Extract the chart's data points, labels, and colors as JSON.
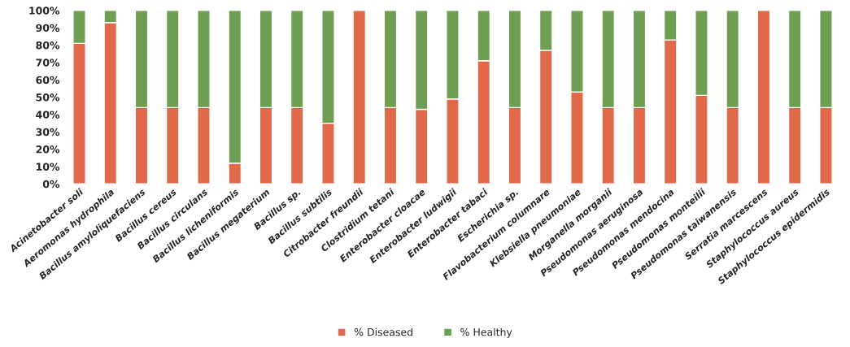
{
  "chart_data": {
    "type": "bar",
    "stacked": true,
    "categories": [
      "Acinetobacter soli",
      "Aeromonas hydrophila",
      "Bacillus amyloliquefaciens",
      "Bacillus cereus",
      "Bacillus circulans",
      "Bacillus licheniformis",
      "Bacillus megaterium",
      "Bacillus sp.",
      "Bacillus subtilis",
      "Citrobacter freundii",
      "Clostridium tetani",
      "Enterobacter cloacae",
      "Enterobacter ludwigii",
      "Enterobacter tabaci",
      "Escherichia sp.",
      "Flavobacterium columnare",
      "Klebsiella pneumoniae",
      "Morganella morganii",
      "Pseudomonas aeruginosa",
      "Pseudomonas mendocina",
      "Pseudomonas monteilii",
      "Pseudomonas taiwanensis",
      "Serratia marcescens",
      "Staphylococcus aureus",
      "Staphylococcus epidermidis"
    ],
    "series": [
      {
        "name": "% Diseased",
        "color": "#e0694a",
        "values": [
          81,
          93,
          44,
          44,
          44,
          12,
          44,
          44,
          35,
          100,
          44,
          43,
          49,
          71,
          44,
          77,
          53,
          44,
          44,
          83,
          51,
          44,
          100,
          44,
          44
        ]
      },
      {
        "name": "% Healthy",
        "color": "#6e9e52",
        "values": [
          19,
          7,
          56,
          56,
          56,
          88,
          56,
          56,
          65,
          null,
          56,
          57,
          51,
          29,
          56,
          23,
          47,
          56,
          56,
          17,
          49,
          56,
          null,
          56,
          56
        ]
      }
    ],
    "ylim": [
      0,
      100
    ],
    "yticks": [
      {
        "value": 0,
        "label": "0%"
      },
      {
        "value": 10,
        "label": "10%"
      },
      {
        "value": 20,
        "label": "20%"
      },
      {
        "value": 30,
        "label": "30%"
      },
      {
        "value": 40,
        "label": "40%"
      },
      {
        "value": 50,
        "label": "50%"
      },
      {
        "value": 60,
        "label": "60%"
      },
      {
        "value": 70,
        "label": "70%"
      },
      {
        "value": 80,
        "label": "80%"
      },
      {
        "value": 90,
        "label": "90%"
      },
      {
        "value": 100,
        "label": "100%"
      }
    ],
    "grid": false,
    "legend": "bottom"
  }
}
